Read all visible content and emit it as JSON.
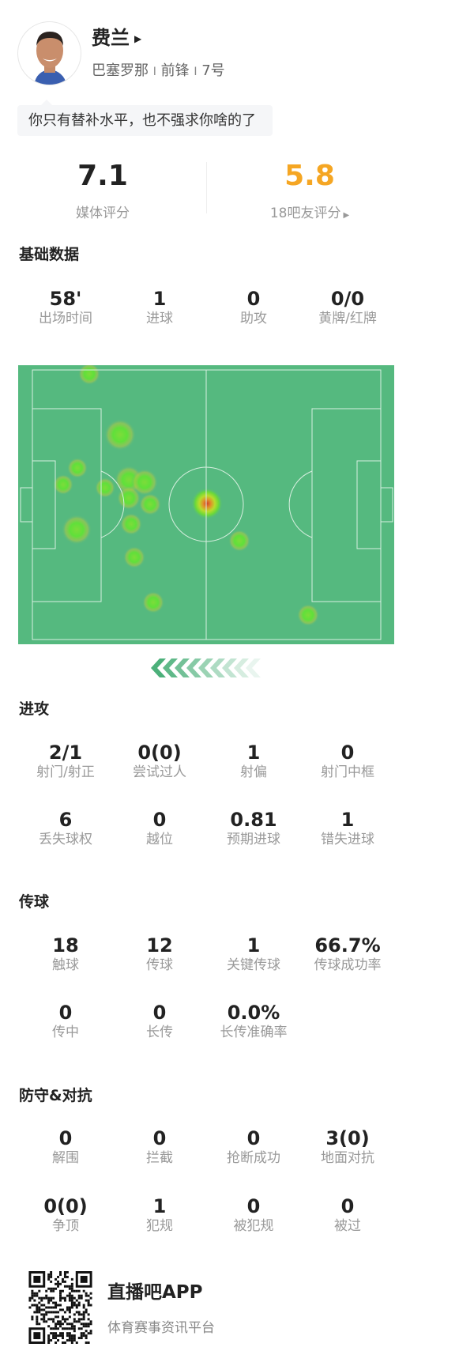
{
  "player": {
    "name": "费兰",
    "club": "巴塞罗那",
    "position": "前锋",
    "number": "7号",
    "separator": "I",
    "comment": "你只有替补水平，也不强求你啥的了"
  },
  "ratings": {
    "media": {
      "value": "7.1",
      "label": "媒体评分"
    },
    "fans": {
      "value": "5.8",
      "label": "18吧友评分",
      "color": "#f5a623"
    }
  },
  "sections": {
    "basic": {
      "title": "基础数据",
      "rows": [
        [
          {
            "value": "58'",
            "label": "出场时间"
          },
          {
            "value": "1",
            "label": "进球"
          },
          {
            "value": "0",
            "label": "助攻"
          },
          {
            "value": "0/0",
            "label": "黄牌/红牌"
          }
        ]
      ]
    },
    "attack": {
      "title": "进攻",
      "rows": [
        [
          {
            "value": "2/1",
            "label": "射门/射正"
          },
          {
            "value": "0(0)",
            "label": "尝试过人"
          },
          {
            "value": "1",
            "label": "射偏"
          },
          {
            "value": "0",
            "label": "射门中框"
          }
        ],
        [
          {
            "value": "6",
            "label": "丢失球权"
          },
          {
            "value": "0",
            "label": "越位"
          },
          {
            "value": "0.81",
            "label": "预期进球"
          },
          {
            "value": "1",
            "label": "错失进球"
          }
        ]
      ]
    },
    "passing": {
      "title": "传球",
      "rows": [
        [
          {
            "value": "18",
            "label": "触球"
          },
          {
            "value": "12",
            "label": "传球"
          },
          {
            "value": "1",
            "label": "关键传球"
          },
          {
            "value": "66.7%",
            "label": "传球成功率"
          }
        ],
        [
          {
            "value": "0",
            "label": "传中"
          },
          {
            "value": "0",
            "label": "长传"
          },
          {
            "value": "0.0%",
            "label": "长传准确率"
          }
        ]
      ]
    },
    "defense": {
      "title": "防守&对抗",
      "rows": [
        [
          {
            "value": "0",
            "label": "解围"
          },
          {
            "value": "0",
            "label": "拦截"
          },
          {
            "value": "0",
            "label": "抢断成功"
          },
          {
            "value": "3(0)",
            "label": "地面对抗"
          }
        ],
        [
          {
            "value": "0(0)",
            "label": "争顶"
          },
          {
            "value": "1",
            "label": "犯规"
          },
          {
            "value": "0",
            "label": "被犯规"
          },
          {
            "value": "0",
            "label": "被过"
          }
        ]
      ]
    }
  },
  "heatmap": {
    "pitch_color": "#55b97f",
    "attack_direction": "left"
  },
  "footer": {
    "app_name": "直播吧APP",
    "slogan": "体育赛事资讯平台"
  }
}
